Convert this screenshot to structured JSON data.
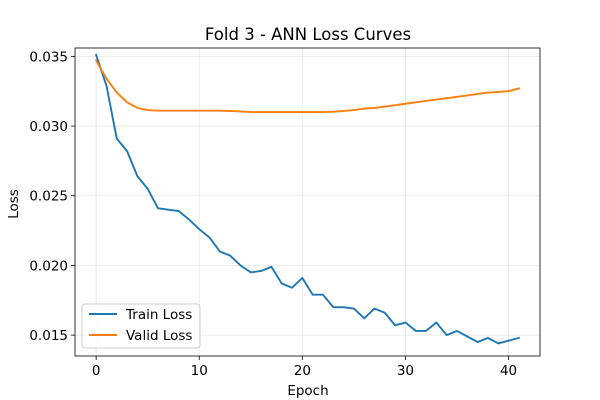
{
  "chart_data": {
    "type": "line",
    "title": "Fold 3 - ANN Loss Curves",
    "xlabel": "Epoch",
    "ylabel": "Loss",
    "xlim": [
      -2.05,
      43.05
    ],
    "ylim": [
      0.0135,
      0.0356
    ],
    "xticks": [
      0,
      10,
      20,
      30,
      40
    ],
    "xtick_labels": [
      "0",
      "10",
      "20",
      "30",
      "40"
    ],
    "yticks": [
      0.015,
      0.02,
      0.025,
      0.03,
      0.035
    ],
    "ytick_labels": [
      "0.015",
      "0.020",
      "0.025",
      "0.030",
      "0.035"
    ],
    "grid": true,
    "legend_position": "lower-left",
    "x": [
      0,
      1,
      2,
      3,
      4,
      5,
      6,
      7,
      8,
      9,
      10,
      11,
      12,
      13,
      14,
      15,
      16,
      17,
      18,
      19,
      20,
      21,
      22,
      23,
      24,
      25,
      26,
      27,
      28,
      29,
      30,
      31,
      32,
      33,
      34,
      35,
      36,
      37,
      38,
      39,
      40,
      41
    ],
    "series": [
      {
        "name": "Train Loss",
        "color": "#1f77b4",
        "values": [
          0.0351,
          0.0329,
          0.0291,
          0.0282,
          0.0264,
          0.0255,
          0.0241,
          0.024,
          0.0239,
          0.0233,
          0.0226,
          0.022,
          0.021,
          0.0207,
          0.02,
          0.0195,
          0.0196,
          0.0199,
          0.0187,
          0.0184,
          0.0191,
          0.0179,
          0.0179,
          0.017,
          0.017,
          0.0169,
          0.0162,
          0.0169,
          0.0166,
          0.0157,
          0.0159,
          0.0153,
          0.0153,
          0.0159,
          0.015,
          0.0153,
          0.0149,
          0.0145,
          0.0148,
          0.0144,
          0.0146,
          0.0148
        ]
      },
      {
        "name": "Valid Loss",
        "color": "#ff7f0e",
        "values": [
          0.0347,
          0.0334,
          0.0324,
          0.0317,
          0.0313,
          0.03115,
          0.0311,
          0.0311,
          0.0311,
          0.0311,
          0.0311,
          0.0311,
          0.0311,
          0.03108,
          0.03105,
          0.031,
          0.031,
          0.031,
          0.031,
          0.031,
          0.031,
          0.031,
          0.031,
          0.03103,
          0.03108,
          0.03115,
          0.03125,
          0.0313,
          0.0314,
          0.0315,
          0.0316,
          0.0317,
          0.0318,
          0.0319,
          0.032,
          0.0321,
          0.0322,
          0.0323,
          0.0324,
          0.03245,
          0.0325,
          0.0327
        ]
      }
    ]
  }
}
